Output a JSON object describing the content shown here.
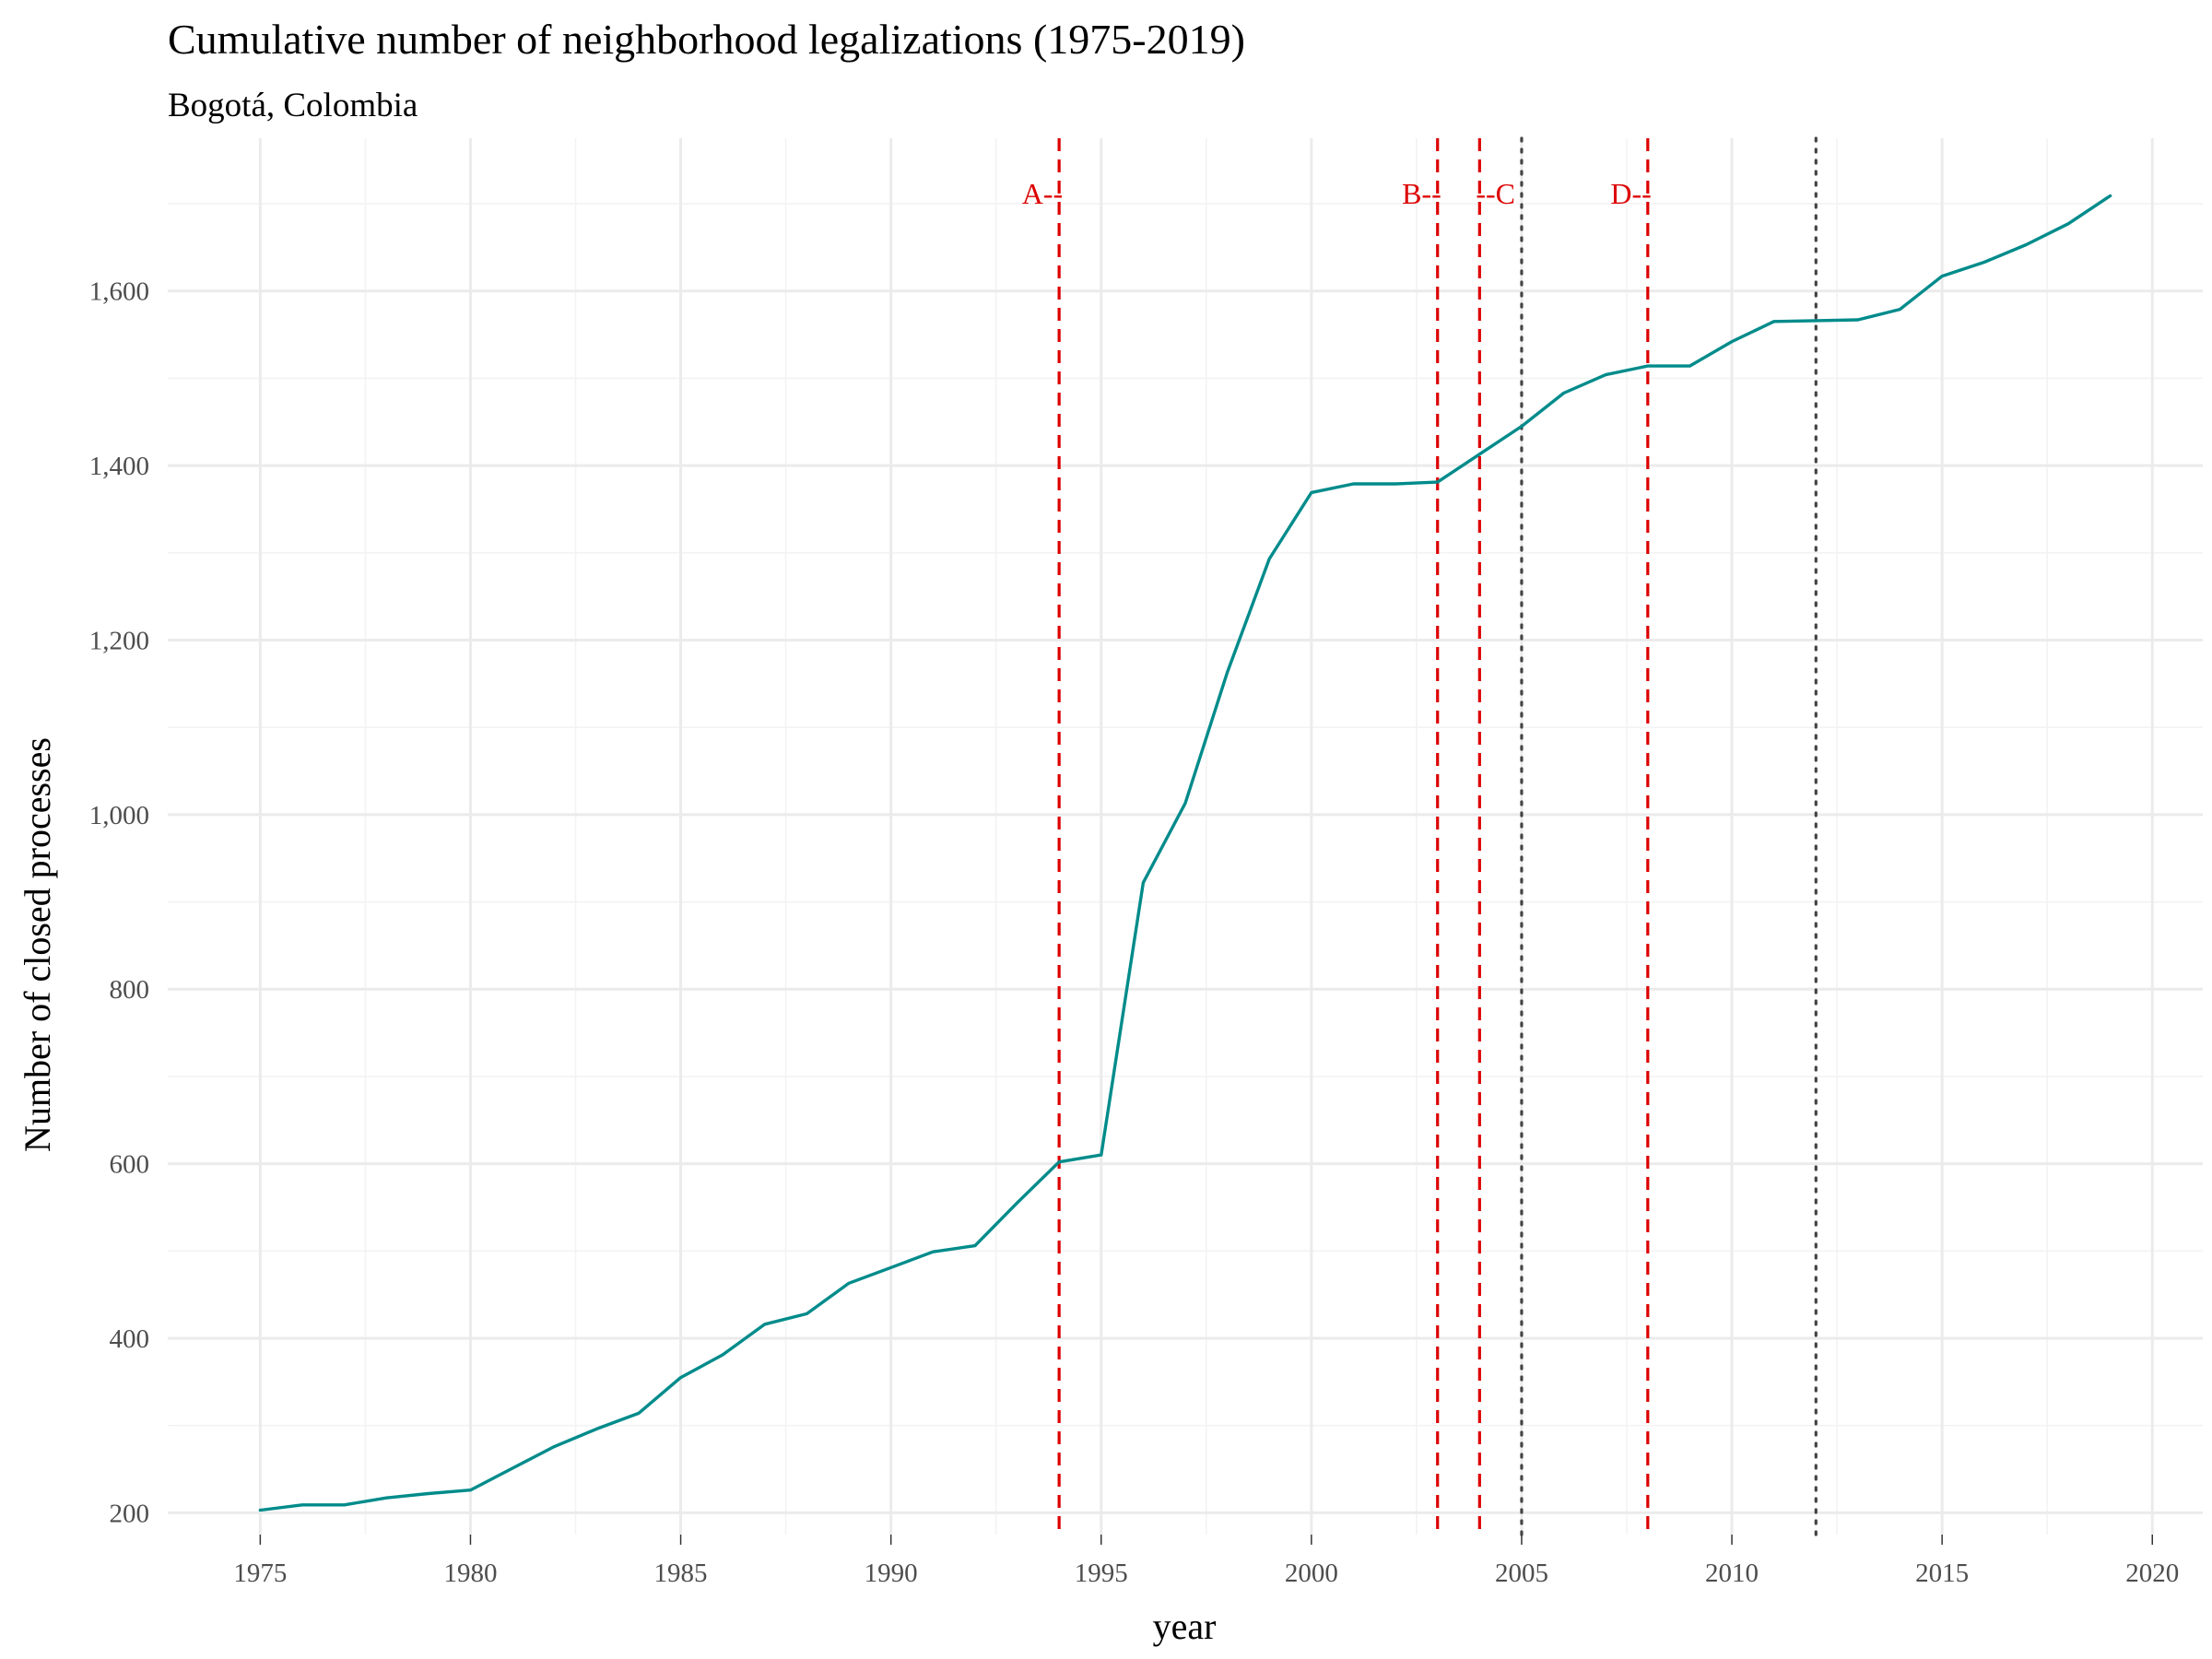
{
  "chart_data": {
    "type": "line",
    "title": "Cumulative number of neighborhood legalizations (1975-2019)",
    "subtitle": "Bogotá, Colombia",
    "xlabel": "year",
    "ylabel": "Number of closed processes",
    "xlim": [
      1972.8,
      2021.2
    ],
    "ylim": [
      175,
      1775
    ],
    "x_ticks": [
      1975,
      1980,
      1985,
      1990,
      1995,
      2000,
      2005,
      2010,
      2015,
      2020
    ],
    "x_tick_labels": [
      "1975",
      "1980",
      "1985",
      "1990",
      "1995",
      "2000",
      "2005",
      "2010",
      "2015",
      "2020"
    ],
    "y_ticks": [
      200,
      400,
      600,
      800,
      1000,
      1200,
      1400,
      1600
    ],
    "y_tick_labels": [
      "200",
      "400",
      "600",
      "800",
      "1,000",
      "1,200",
      "1,400",
      "1,600"
    ],
    "grid": true,
    "line_color": "#008b8b",
    "series": [
      {
        "x": [
          1975,
          1976,
          1977,
          1978,
          1979,
          1980,
          1981,
          1982,
          1983,
          1984,
          1985,
          1986,
          1987,
          1988,
          1989,
          1990,
          1991,
          1992,
          1993,
          1994,
          1995,
          1996,
          1997,
          1998,
          1999,
          2000,
          2001,
          2002,
          2003,
          2004,
          2005,
          2006,
          2007,
          2008,
          2009,
          2010,
          2011,
          2012,
          2013,
          2014,
          2015,
          2016,
          2017,
          2018,
          2019
        ],
        "values": [
          203,
          209,
          209,
          217,
          222,
          226,
          251,
          276,
          296,
          314,
          355,
          381,
          416,
          428,
          463,
          481,
          499,
          506,
          555,
          602,
          610,
          922,
          1013,
          1163,
          1293,
          1369,
          1379,
          1379,
          1381,
          1413,
          1445,
          1483,
          1504,
          1514,
          1514,
          1542,
          1565,
          1566,
          1567,
          1579,
          1617,
          1633,
          1653,
          1677,
          1709
        ]
      }
    ],
    "vlines": [
      {
        "x": 1994,
        "style": "dashed",
        "color": "#dd0000"
      },
      {
        "x": 2003,
        "style": "dashed",
        "color": "#dd0000"
      },
      {
        "x": 2004,
        "style": "dashed",
        "color": "#dd0000"
      },
      {
        "x": 2005,
        "style": "dotted",
        "color": "#444444"
      },
      {
        "x": 2008,
        "style": "dashed",
        "color": "#dd0000"
      },
      {
        "x": 2012,
        "style": "dotted",
        "color": "#444444"
      }
    ],
    "annotations": [
      {
        "text": "A--",
        "x": 1994,
        "anchor": "end",
        "color": "#dd0000"
      },
      {
        "text": "B--",
        "x": 2003,
        "anchor": "end",
        "color": "#dd0000"
      },
      {
        "text": "--C",
        "x": 2004,
        "anchor": "start",
        "color": "#dd0000"
      },
      {
        "text": "D--",
        "x": 2008,
        "anchor": "end",
        "color": "#dd0000"
      }
    ]
  }
}
